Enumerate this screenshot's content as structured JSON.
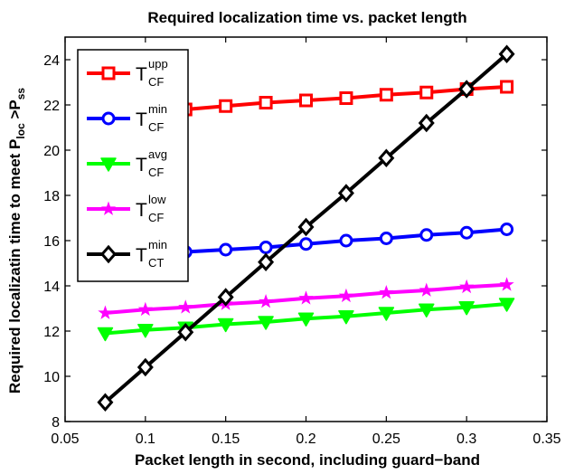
{
  "chart_data": {
    "type": "line",
    "title": "Required localization time vs. packet length",
    "xlabel": "Packet length in second, including guard−band",
    "ylabel": {
      "main": "Required localizatin time to meet P",
      "sub1": "loc",
      "mid": " >P",
      "sub2": "ss"
    },
    "xlim": [
      0.05,
      0.35
    ],
    "ylim": [
      8,
      25
    ],
    "x_ticks": [
      "0.05",
      "0.1",
      "0.15",
      "0.2",
      "0.25",
      "0.3",
      "0.35"
    ],
    "y_ticks": [
      "8",
      "10",
      "12",
      "14",
      "16",
      "18",
      "20",
      "22",
      "24"
    ],
    "grid": false,
    "legend_position": "top-left",
    "x": [
      0.075,
      0.1,
      0.125,
      0.15,
      0.175,
      0.2,
      0.225,
      0.25,
      0.275,
      0.3,
      0.325
    ],
    "series": [
      {
        "base": "T",
        "sup": "upp",
        "sub": "CF",
        "color": "#ff0000",
        "marker": "square",
        "values": [
          21.5,
          21.6,
          21.8,
          21.95,
          22.1,
          22.2,
          22.3,
          22.45,
          22.55,
          22.7,
          22.8
        ]
      },
      {
        "base": "T",
        "sup": "min",
        "sub": "CF",
        "color": "#0000ff",
        "marker": "circle",
        "values": [
          15.25,
          15.35,
          15.5,
          15.6,
          15.7,
          15.85,
          16.0,
          16.1,
          16.25,
          16.35,
          16.5
        ]
      },
      {
        "base": "T",
        "sup": "avg",
        "sub": "CF",
        "color": "#00ff00",
        "marker": "triangle-down",
        "values": [
          11.9,
          12.05,
          12.15,
          12.3,
          12.4,
          12.55,
          12.65,
          12.8,
          12.95,
          13.05,
          13.2
        ]
      },
      {
        "base": "T",
        "sup": "low",
        "sub": "CF",
        "color": "#ff00ff",
        "marker": "star",
        "values": [
          12.8,
          12.95,
          13.05,
          13.2,
          13.3,
          13.45,
          13.55,
          13.7,
          13.8,
          13.95,
          14.05
        ]
      },
      {
        "base": "T",
        "sup": "min",
        "sub": "CT",
        "color": "#000000",
        "marker": "diamond",
        "values": [
          8.85,
          10.4,
          11.95,
          13.5,
          15.05,
          16.6,
          18.1,
          19.65,
          21.2,
          22.7,
          24.25
        ]
      }
    ]
  }
}
